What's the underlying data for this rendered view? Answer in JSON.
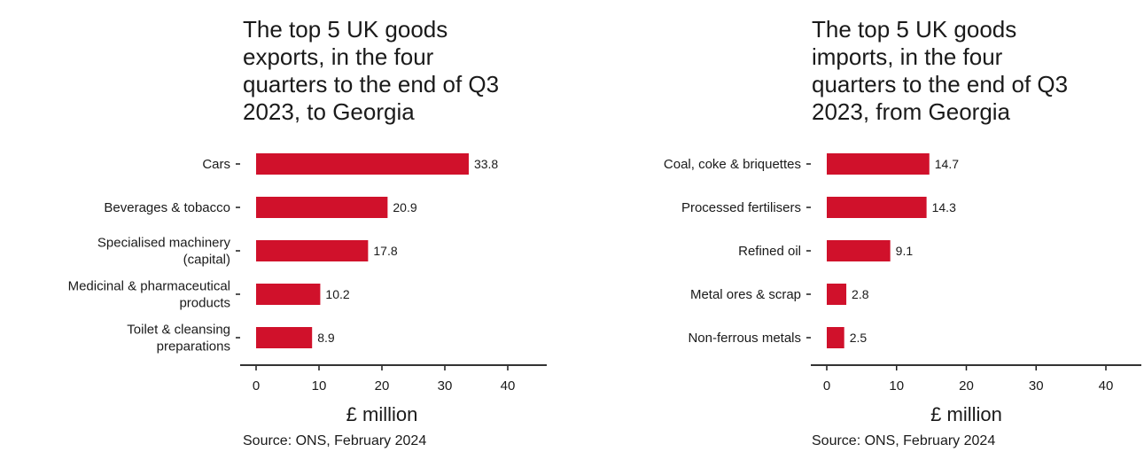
{
  "chart_data": [
    {
      "type": "bar",
      "orientation": "horizontal",
      "title": "The top 5 UK goods\nexports, in the four\nquarters to the end of Q3\n2023, to Georgia",
      "categories": [
        "Cars",
        "Beverages & tobacco",
        "Specialised machinery\n(capital)",
        "Medicinal & pharmaceutical\nproducts",
        "Toilet & cleansing\npreparations"
      ],
      "values": [
        33.8,
        20.9,
        17.8,
        10.2,
        8.9
      ],
      "value_labels": [
        "33.8",
        "20.9",
        "17.8",
        "10.2",
        "8.9"
      ],
      "xlabel": "£ million",
      "xlim": [
        0,
        40
      ],
      "xticks": [
        0,
        10,
        20,
        30,
        40
      ],
      "source": "Source: ONS, February 2024",
      "bar_color": "#d0112b",
      "grid": false,
      "legend": "none"
    },
    {
      "type": "bar",
      "orientation": "horizontal",
      "title": "The top 5 UK goods\nimports, in the four\nquarters to the end of Q3\n2023, from Georgia",
      "categories": [
        "Coal, coke & briquettes",
        "Processed fertilisers",
        "Refined oil",
        "Metal ores & scrap",
        "Non-ferrous metals"
      ],
      "values": [
        14.7,
        14.3,
        9.1,
        2.8,
        2.5
      ],
      "value_labels": [
        "14.7",
        "14.3",
        "9.1",
        "2.8",
        "2.5"
      ],
      "xlabel": "£ million",
      "xlim": [
        0,
        40
      ],
      "xticks": [
        0,
        10,
        20,
        30,
        40
      ],
      "source": "Source: ONS, February 2024",
      "bar_color": "#d0112b",
      "grid": false,
      "legend": "none"
    }
  ]
}
